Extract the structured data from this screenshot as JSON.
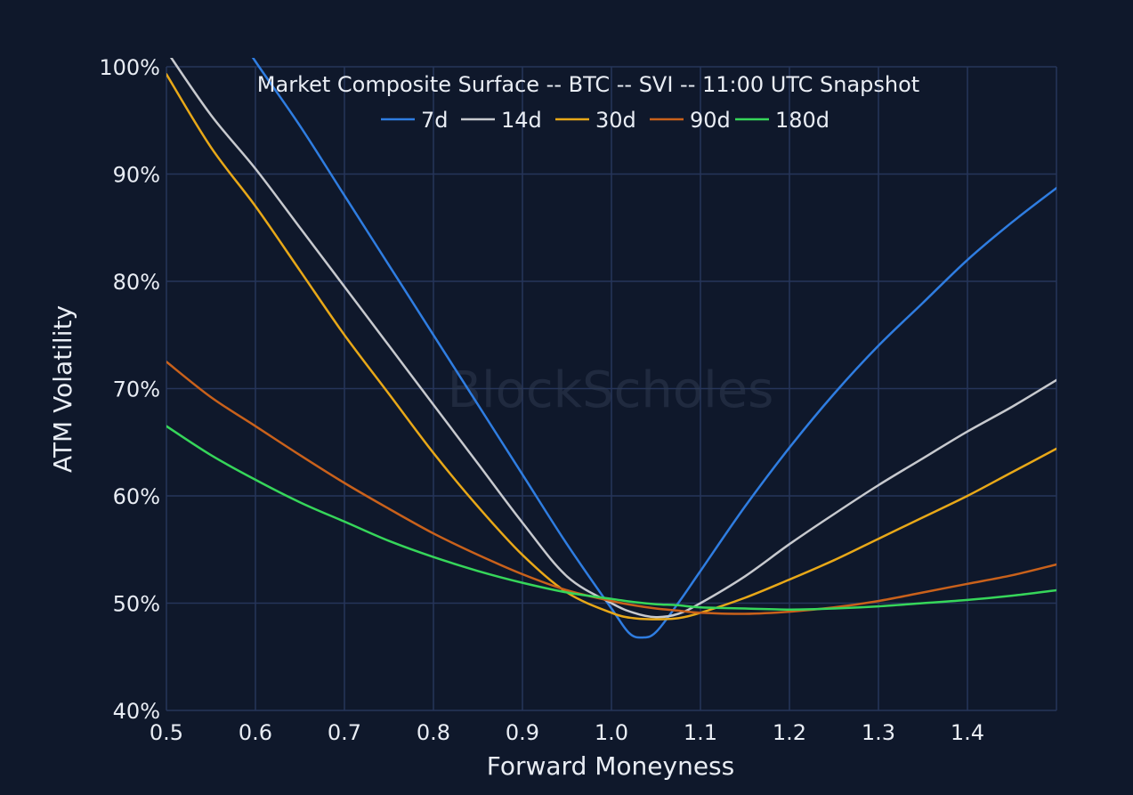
{
  "chart_data": {
    "type": "line",
    "title": "Market Composite Surface -- BTC -- SVI -- 11:00 UTC Snapshot",
    "xlabel": "Forward Moneyness",
    "ylabel": "ATM Volatility",
    "watermark": "BlockScholes",
    "xlim": [
      0.5,
      1.5
    ],
    "ylim": [
      40,
      100
    ],
    "x_ticks": [
      0.5,
      0.6,
      0.7,
      0.8,
      0.9,
      1.0,
      1.1,
      1.2,
      1.3,
      1.4
    ],
    "x_tick_labels": [
      "0.5",
      "0.6",
      "0.7",
      "0.8",
      "0.9",
      "1.0",
      "1.1",
      "1.2",
      "1.3",
      "1.4"
    ],
    "y_ticks": [
      40,
      50,
      60,
      70,
      80,
      90,
      100
    ],
    "y_tick_labels": [
      "40%",
      "50%",
      "60%",
      "70%",
      "80%",
      "90%",
      "100%"
    ],
    "grid": true,
    "legend_position": "top-center",
    "colors": {
      "background": "#0f182b",
      "grid": "#26355a",
      "text": "#e9edf4"
    },
    "x": [
      0.5,
      0.55,
      0.6,
      0.65,
      0.7,
      0.75,
      0.8,
      0.85,
      0.9,
      0.95,
      1.0,
      1.025,
      1.05,
      1.075,
      1.1,
      1.15,
      1.2,
      1.25,
      1.3,
      1.35,
      1.4,
      1.45,
      1.5
    ],
    "series": [
      {
        "name": "7d",
        "color": "#2f7de1",
        "x": [
          0.565,
          0.6,
          0.65,
          0.7,
          0.75,
          0.8,
          0.85,
          0.9,
          0.95,
          1.0,
          1.02,
          1.035,
          1.05,
          1.075,
          1.1,
          1.15,
          1.2,
          1.25,
          1.3,
          1.35,
          1.4,
          1.45,
          1.5
        ],
        "values": [
          105,
          100.5,
          94.5,
          88,
          81.5,
          75,
          68.5,
          62,
          55.5,
          49.5,
          47.2,
          46.8,
          47.3,
          50,
          53,
          59,
          64.5,
          69.5,
          74,
          78,
          82,
          85.5,
          88.7
        ]
      },
      {
        "name": "14d",
        "color": "#c7c9ce",
        "x": [
          0.5,
          0.55,
          0.6,
          0.65,
          0.7,
          0.75,
          0.8,
          0.85,
          0.9,
          0.95,
          1.0,
          1.025,
          1.05,
          1.075,
          1.1,
          1.15,
          1.2,
          1.25,
          1.3,
          1.35,
          1.4,
          1.45,
          1.5
        ],
        "values": [
          101.5,
          95.5,
          90.5,
          85,
          79.5,
          74,
          68.5,
          63,
          57.5,
          52.5,
          50,
          49.1,
          48.7,
          49,
          50,
          52.5,
          55.5,
          58.3,
          61,
          63.5,
          66,
          68.3,
          70.8
        ]
      },
      {
        "name": "30d",
        "color": "#e8a818",
        "x": [
          0.5,
          0.55,
          0.6,
          0.65,
          0.7,
          0.75,
          0.8,
          0.85,
          0.9,
          0.95,
          1.0,
          1.025,
          1.05,
          1.075,
          1.1,
          1.15,
          1.2,
          1.25,
          1.3,
          1.35,
          1.4,
          1.45,
          1.5
        ],
        "values": [
          99.3,
          92.5,
          87,
          81,
          75,
          69.5,
          64,
          59,
          54.5,
          51,
          49.1,
          48.6,
          48.5,
          48.6,
          49.1,
          50.5,
          52.2,
          54,
          56,
          58,
          60,
          62.2,
          64.4
        ]
      },
      {
        "name": "90d",
        "color": "#c9611b",
        "x": [
          0.5,
          0.55,
          0.6,
          0.65,
          0.7,
          0.75,
          0.8,
          0.85,
          0.9,
          0.95,
          1.0,
          1.025,
          1.05,
          1.075,
          1.1,
          1.15,
          1.2,
          1.25,
          1.3,
          1.35,
          1.4,
          1.45,
          1.5
        ],
        "values": [
          72.5,
          69.2,
          66.5,
          63.8,
          61.2,
          58.8,
          56.5,
          54.5,
          52.7,
          51.2,
          50.2,
          49.8,
          49.5,
          49.3,
          49.1,
          49,
          49.2,
          49.6,
          50.2,
          51,
          51.8,
          52.6,
          53.6
        ]
      },
      {
        "name": "180d",
        "color": "#36d65a",
        "x": [
          0.5,
          0.55,
          0.6,
          0.65,
          0.7,
          0.75,
          0.8,
          0.85,
          0.9,
          0.95,
          1.0,
          1.025,
          1.05,
          1.075,
          1.1,
          1.15,
          1.2,
          1.25,
          1.3,
          1.35,
          1.4,
          1.45,
          1.5
        ],
        "values": [
          66.5,
          63.8,
          61.5,
          59.4,
          57.6,
          55.8,
          54.3,
          53,
          51.9,
          51,
          50.4,
          50.1,
          49.9,
          49.8,
          49.6,
          49.5,
          49.4,
          49.5,
          49.7,
          50,
          50.3,
          50.7,
          51.2
        ]
      }
    ]
  }
}
